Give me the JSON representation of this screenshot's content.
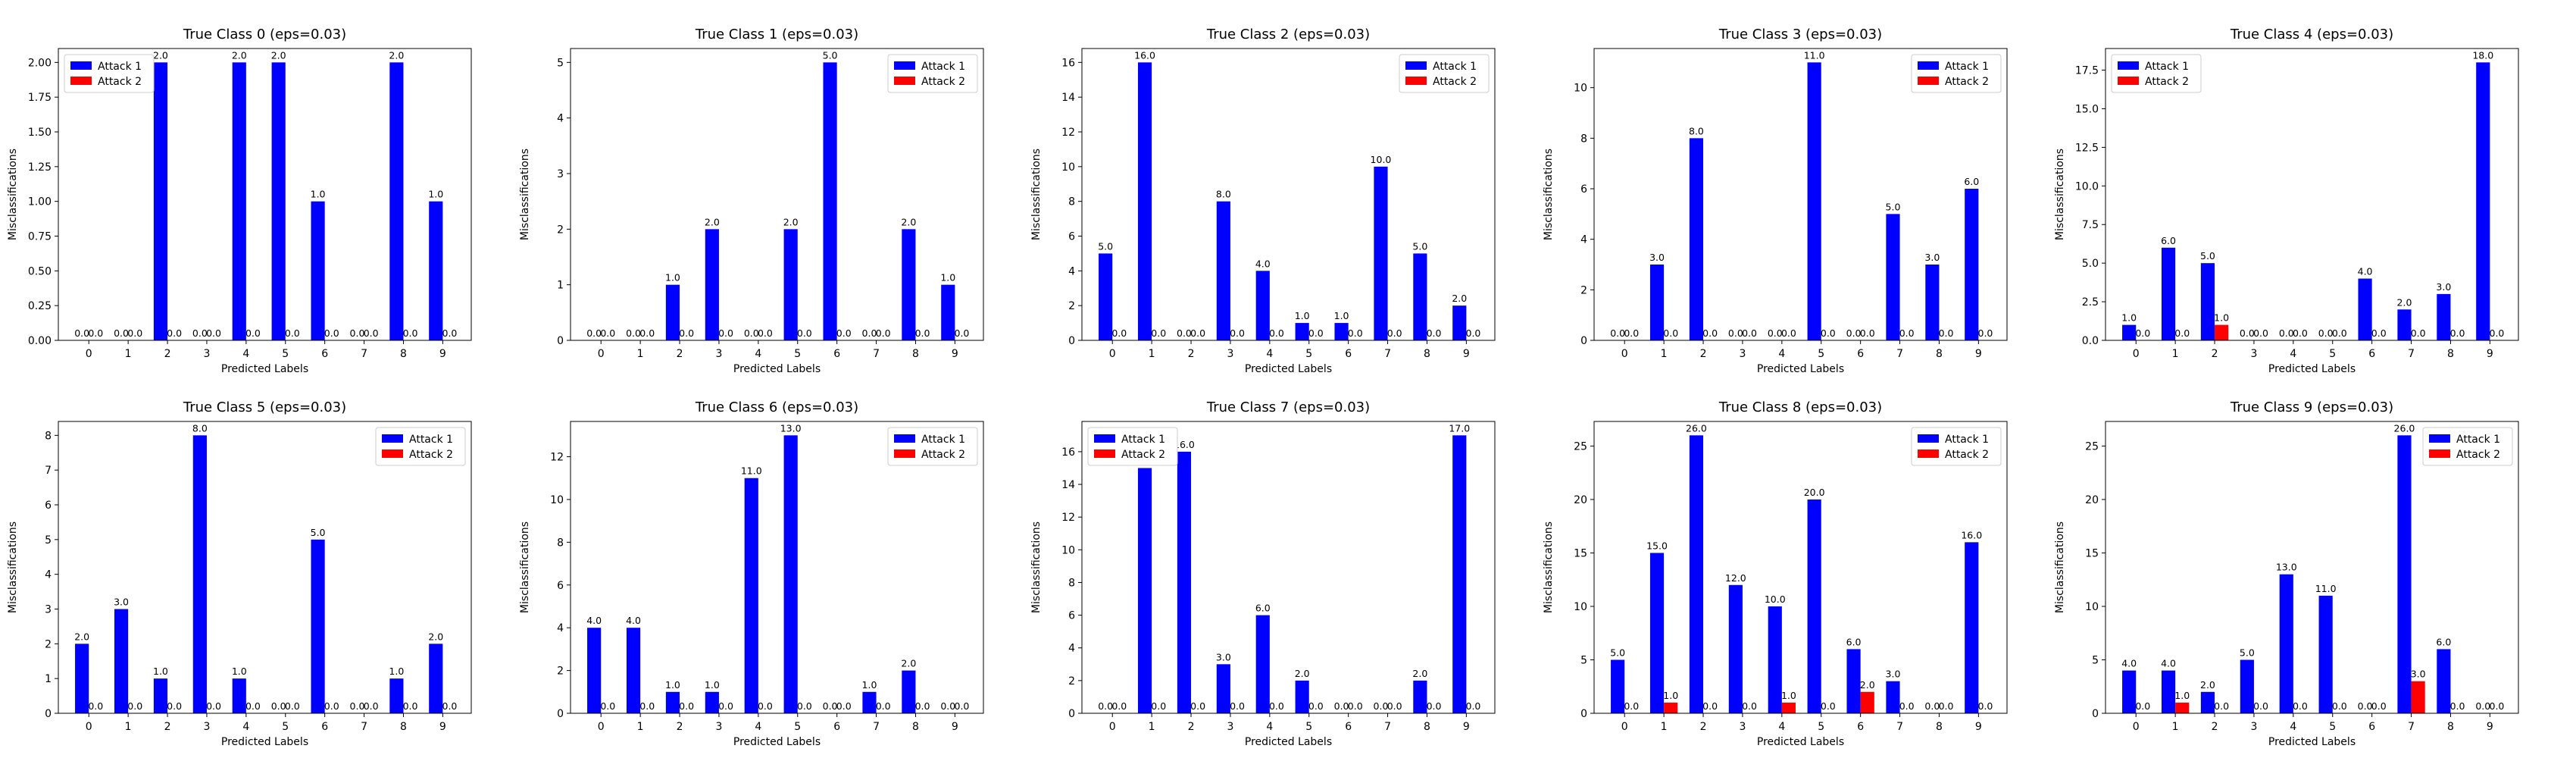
{
  "chart_data": [
    {
      "type": "bar",
      "title": "True Class 0 (eps=0.03)",
      "xlabel": "Predicted Labels",
      "ylabel": "Misclassifications",
      "categories": [
        "0",
        "1",
        "2",
        "3",
        "4",
        "5",
        "6",
        "7",
        "8",
        "9"
      ],
      "series": [
        {
          "name": "Attack 1",
          "color": "#0000ff",
          "values": [
            0,
            0,
            2,
            0,
            2,
            2,
            1,
            0,
            2,
            1
          ]
        },
        {
          "name": "Attack 2",
          "color": "#ff0000",
          "values": [
            0,
            0,
            0,
            0,
            0,
            0,
            0,
            0,
            0,
            0
          ]
        }
      ],
      "ylim": [
        0,
        2.1
      ],
      "yticks": [
        "0.00",
        "0.25",
        "0.50",
        "0.75",
        "1.00",
        "1.25",
        "1.50",
        "1.75",
        "2.00"
      ],
      "legend": "top-left"
    },
    {
      "type": "bar",
      "title": "True Class 1 (eps=0.03)",
      "xlabel": "Predicted Labels",
      "ylabel": "Misclassifications",
      "categories": [
        "0",
        "1",
        "2",
        "3",
        "4",
        "5",
        "6",
        "7",
        "8",
        "9"
      ],
      "series": [
        {
          "name": "Attack 1",
          "color": "#0000ff",
          "values": [
            0,
            0,
            1,
            2,
            0,
            2,
            5,
            0,
            2,
            1
          ]
        },
        {
          "name": "Attack 2",
          "color": "#ff0000",
          "values": [
            0,
            0,
            0,
            0,
            0,
            0,
            0,
            0,
            0,
            0
          ]
        }
      ],
      "ylim": [
        0,
        5.25
      ],
      "yticks": [
        "0",
        "1",
        "2",
        "3",
        "4",
        "5"
      ],
      "legend": "top-right"
    },
    {
      "type": "bar",
      "title": "True Class 2 (eps=0.03)",
      "xlabel": "Predicted Labels",
      "ylabel": "Misclassifications",
      "categories": [
        "0",
        "1",
        "2",
        "3",
        "4",
        "5",
        "6",
        "7",
        "8",
        "9"
      ],
      "series": [
        {
          "name": "Attack 1",
          "color": "#0000ff",
          "values": [
            5,
            16,
            0,
            8,
            4,
            1,
            1,
            10,
            5,
            2
          ]
        },
        {
          "name": "Attack 2",
          "color": "#ff0000",
          "values": [
            0,
            0,
            0,
            0,
            0,
            0,
            0,
            0,
            0,
            0
          ]
        }
      ],
      "ylim": [
        0,
        16.8
      ],
      "yticks": [
        "0",
        "2",
        "4",
        "6",
        "8",
        "10",
        "12",
        "14",
        "16"
      ],
      "legend": "top-right"
    },
    {
      "type": "bar",
      "title": "True Class 3 (eps=0.03)",
      "xlabel": "Predicted Labels",
      "ylabel": "Misclassifications",
      "categories": [
        "0",
        "1",
        "2",
        "3",
        "4",
        "5",
        "6",
        "7",
        "8",
        "9"
      ],
      "series": [
        {
          "name": "Attack 1",
          "color": "#0000ff",
          "values": [
            0,
            3,
            8,
            0,
            0,
            11,
            0,
            5,
            3,
            6
          ]
        },
        {
          "name": "Attack 2",
          "color": "#ff0000",
          "values": [
            0,
            0,
            0,
            0,
            0,
            0,
            0,
            0,
            0,
            0
          ]
        }
      ],
      "ylim": [
        0,
        11.55
      ],
      "yticks": [
        "0",
        "2",
        "4",
        "6",
        "8",
        "10"
      ],
      "legend": "top-right"
    },
    {
      "type": "bar",
      "title": "True Class 4 (eps=0.03)",
      "xlabel": "Predicted Labels",
      "ylabel": "Misclassifications",
      "categories": [
        "0",
        "1",
        "2",
        "3",
        "4",
        "5",
        "6",
        "7",
        "8",
        "9"
      ],
      "series": [
        {
          "name": "Attack 1",
          "color": "#0000ff",
          "values": [
            1,
            6,
            5,
            0,
            0,
            0,
            4,
            2,
            3,
            18
          ]
        },
        {
          "name": "Attack 2",
          "color": "#ff0000",
          "values": [
            0,
            0,
            1,
            0,
            0,
            0,
            0,
            0,
            0,
            0
          ]
        }
      ],
      "ylim": [
        0,
        18.9
      ],
      "yticks": [
        "0.0",
        "2.5",
        "5.0",
        "7.5",
        "10.0",
        "12.5",
        "15.0",
        "17.5"
      ],
      "legend": "top-left"
    },
    {
      "type": "bar",
      "title": "True Class 5 (eps=0.03)",
      "xlabel": "Predicted Labels",
      "ylabel": "Misclassifications",
      "categories": [
        "0",
        "1",
        "2",
        "3",
        "4",
        "5",
        "6",
        "7",
        "8",
        "9"
      ],
      "series": [
        {
          "name": "Attack 1",
          "color": "#0000ff",
          "values": [
            2,
            3,
            1,
            8,
            1,
            0,
            5,
            0,
            1,
            2
          ]
        },
        {
          "name": "Attack 2",
          "color": "#ff0000",
          "values": [
            0,
            0,
            0,
            0,
            0,
            0,
            0,
            0,
            0,
            0
          ]
        }
      ],
      "ylim": [
        0,
        8.4
      ],
      "yticks": [
        "0",
        "1",
        "2",
        "3",
        "4",
        "5",
        "6",
        "7",
        "8"
      ],
      "legend": "top-right"
    },
    {
      "type": "bar",
      "title": "True Class 6 (eps=0.03)",
      "xlabel": "Predicted Labels",
      "ylabel": "Misclassifications",
      "categories": [
        "0",
        "1",
        "2",
        "3",
        "4",
        "5",
        "6",
        "7",
        "8",
        "9"
      ],
      "series": [
        {
          "name": "Attack 1",
          "color": "#0000ff",
          "values": [
            4,
            4,
            1,
            1,
            11,
            13,
            0,
            1,
            2,
            0
          ]
        },
        {
          "name": "Attack 2",
          "color": "#ff0000",
          "values": [
            0,
            0,
            0,
            0,
            0,
            0,
            0,
            0,
            0,
            0
          ]
        }
      ],
      "ylim": [
        0,
        13.65
      ],
      "yticks": [
        "0",
        "2",
        "4",
        "6",
        "8",
        "10",
        "12"
      ],
      "legend": "top-right"
    },
    {
      "type": "bar",
      "title": "True Class 7 (eps=0.03)",
      "xlabel": "Predicted Labels",
      "ylabel": "Misclassifications",
      "categories": [
        "0",
        "1",
        "2",
        "3",
        "4",
        "5",
        "6",
        "7",
        "8",
        "9"
      ],
      "series": [
        {
          "name": "Attack 1",
          "color": "#0000ff",
          "values": [
            0,
            15,
            16,
            3,
            6,
            2,
            0,
            0,
            2,
            17
          ]
        },
        {
          "name": "Attack 2",
          "color": "#ff0000",
          "values": [
            0,
            0,
            0,
            0,
            0,
            0,
            0,
            0,
            0,
            0
          ]
        }
      ],
      "ylim": [
        0,
        17.85
      ],
      "yticks": [
        "0",
        "2",
        "4",
        "6",
        "8",
        "10",
        "12",
        "14",
        "16"
      ],
      "legend": "top-left"
    },
    {
      "type": "bar",
      "title": "True Class 8 (eps=0.03)",
      "xlabel": "Predicted Labels",
      "ylabel": "Misclassifications",
      "categories": [
        "0",
        "1",
        "2",
        "3",
        "4",
        "5",
        "6",
        "7",
        "8",
        "9"
      ],
      "series": [
        {
          "name": "Attack 1",
          "color": "#0000ff",
          "values": [
            5,
            15,
            26,
            12,
            10,
            20,
            6,
            3,
            0,
            16
          ]
        },
        {
          "name": "Attack 2",
          "color": "#ff0000",
          "values": [
            0,
            1,
            0,
            0,
            1,
            0,
            2,
            0,
            0,
            0
          ]
        }
      ],
      "ylim": [
        0,
        27.3
      ],
      "yticks": [
        "0",
        "5",
        "10",
        "15",
        "20",
        "25"
      ],
      "legend": "top-right"
    },
    {
      "type": "bar",
      "title": "True Class 9 (eps=0.03)",
      "xlabel": "Predicted Labels",
      "ylabel": "Misclassifications",
      "categories": [
        "0",
        "1",
        "2",
        "3",
        "4",
        "5",
        "6",
        "7",
        "8",
        "9"
      ],
      "series": [
        {
          "name": "Attack 1",
          "color": "#0000ff",
          "values": [
            4,
            4,
            2,
            5,
            13,
            11,
            0,
            26,
            6,
            0
          ]
        },
        {
          "name": "Attack 2",
          "color": "#ff0000",
          "values": [
            0,
            1,
            0,
            0,
            0,
            0,
            0,
            3,
            0,
            0
          ]
        }
      ],
      "ylim": [
        0,
        27.3
      ],
      "yticks": [
        "0",
        "5",
        "10",
        "15",
        "20",
        "25"
      ],
      "legend": "top-right"
    }
  ]
}
